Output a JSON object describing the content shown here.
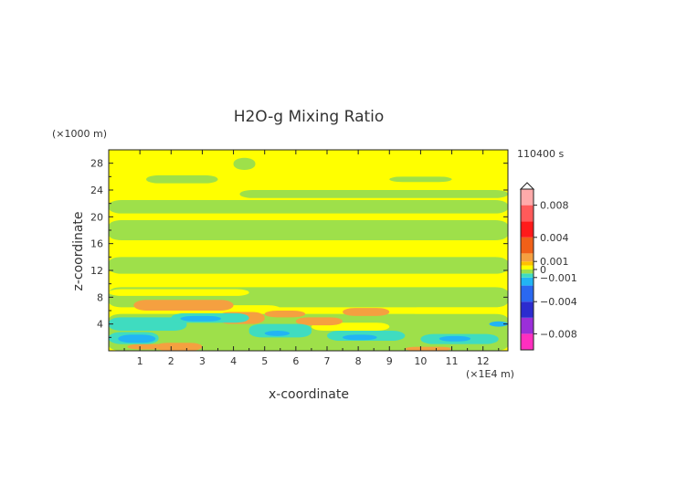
{
  "chart_data": {
    "type": "heatmap",
    "title": "H2O-g Mixing Ratio",
    "xlabel": "x-coordinate",
    "ylabel": "z-coordinate",
    "x_unit": "(×1E4 m)",
    "y_unit": "(×1000 m)",
    "time_label": "110400 s",
    "xlim": [
      0,
      12.8
    ],
    "ylim": [
      0,
      30
    ],
    "x_ticks": [
      "1",
      "2",
      "3",
      "4",
      "5",
      "6",
      "7",
      "8",
      "9",
      "10",
      "11",
      "12"
    ],
    "y_ticks": [
      "4",
      "8",
      "12",
      "16",
      "20",
      "24",
      "28"
    ],
    "colorbar": {
      "range": [
        -0.01,
        0.01
      ],
      "tick_labels": [
        {
          "value": 0.008,
          "text": "0.008"
        },
        {
          "value": 0.004,
          "text": "0.004"
        },
        {
          "value": 0.001,
          "text": "0.001"
        },
        {
          "value": 0,
          "text": "0"
        },
        {
          "value": -0.001,
          "text": "−0.001"
        },
        {
          "value": -0.004,
          "text": "−0.004"
        },
        {
          "value": -0.008,
          "text": "−0.008"
        }
      ],
      "colors": [
        {
          "min": -0.01,
          "max": -0.008,
          "color": "#ff2fbf"
        },
        {
          "min": -0.008,
          "max": -0.006,
          "color": "#9b2fd9"
        },
        {
          "min": -0.006,
          "max": -0.004,
          "color": "#2c2ccf"
        },
        {
          "min": -0.004,
          "max": -0.002,
          "color": "#2a68f0"
        },
        {
          "min": -0.002,
          "max": -0.001,
          "color": "#22b4f4"
        },
        {
          "min": -0.001,
          "max": -0.0005,
          "color": "#3fdcc0"
        },
        {
          "min": -0.0005,
          "max": 0,
          "color": "#9ee04a"
        },
        {
          "min": 0,
          "max": 0.0005,
          "color": "#ffff00"
        },
        {
          "min": 0.0005,
          "max": 0.001,
          "color": "#ffc000"
        },
        {
          "min": 0.001,
          "max": 0.002,
          "color": "#f5a040"
        },
        {
          "min": 0.002,
          "max": 0.004,
          "color": "#f06018"
        },
        {
          "min": 0.004,
          "max": 0.006,
          "color": "#ff1a1a"
        },
        {
          "min": 0.006,
          "max": 0.008,
          "color": "#ff5a5a"
        },
        {
          "min": 0.008,
          "max": 0.01,
          "color": "#ffaaaa"
        }
      ]
    },
    "regions": [
      {
        "color": "#9ee04a",
        "x0": 0,
        "x1": 12.8,
        "y0": 16.5,
        "y1": 19.5
      },
      {
        "color": "#9ee04a",
        "x0": 0,
        "x1": 12.8,
        "y0": 11.5,
        "y1": 14.0
      },
      {
        "color": "#9ee04a",
        "x0": 0,
        "x1": 12.8,
        "y0": 6.5,
        "y1": 9.5
      },
      {
        "color": "#9ee04a",
        "x0": 0,
        "x1": 12.8,
        "y0": 0,
        "y1": 5.5
      },
      {
        "color": "#9ee04a",
        "x0": 0,
        "x1": 12.8,
        "y0": 20.5,
        "y1": 22.5
      },
      {
        "color": "#9ee04a",
        "x0": 4.2,
        "x1": 12.8,
        "y0": 22.8,
        "y1": 24.0
      },
      {
        "color": "#9ee04a",
        "x0": 1.2,
        "x1": 3.5,
        "y0": 25.0,
        "y1": 26.2
      },
      {
        "color": "#9ee04a",
        "x0": 9.0,
        "x1": 11.0,
        "y0": 25.2,
        "y1": 26.0
      },
      {
        "color": "#9ee04a",
        "x0": 4.0,
        "x1": 4.7,
        "y0": 27.0,
        "y1": 28.8
      },
      {
        "color": "#ffff00",
        "x0": 1.5,
        "x1": 3.0,
        "y0": 14.3,
        "y1": 15.5
      },
      {
        "color": "#ffff00",
        "x0": 8.5,
        "x1": 12.8,
        "y0": 19.7,
        "y1": 20.3
      },
      {
        "color": "#ffff00",
        "x0": 0,
        "x1": 4.5,
        "y0": 8.2,
        "y1": 9.2
      },
      {
        "color": "#ffff00",
        "x0": 3.0,
        "x1": 5.5,
        "y0": 5.8,
        "y1": 6.8
      },
      {
        "color": "#ffff00",
        "x0": 9.5,
        "x1": 12.8,
        "y0": 5.5,
        "y1": 6.5
      },
      {
        "color": "#ffff00",
        "x0": 6.5,
        "x1": 9.0,
        "y0": 3.0,
        "y1": 4.2
      },
      {
        "color": "#f5a040",
        "x0": 0.8,
        "x1": 4.0,
        "y0": 6.0,
        "y1": 7.6
      },
      {
        "color": "#f5a040",
        "x0": 3.5,
        "x1": 5.0,
        "y0": 4.0,
        "y1": 5.8
      },
      {
        "color": "#f5a040",
        "x0": 5.0,
        "x1": 6.3,
        "y0": 5.0,
        "y1": 6.0
      },
      {
        "color": "#f5a040",
        "x0": 6.0,
        "x1": 7.5,
        "y0": 3.8,
        "y1": 5.0
      },
      {
        "color": "#f5a040",
        "x0": 7.5,
        "x1": 9.0,
        "y0": 5.2,
        "y1": 6.4
      },
      {
        "color": "#f5a040",
        "x0": 1.5,
        "x1": 3.0,
        "y0": 0,
        "y1": 1.2
      },
      {
        "color": "#f5a040",
        "x0": 0.6,
        "x1": 2.0,
        "y0": 0.2,
        "y1": 1.0
      },
      {
        "color": "#f5a040",
        "x0": 9.5,
        "x1": 11.0,
        "y0": 0,
        "y1": 0.6
      },
      {
        "color": "#3fdcc0",
        "x0": 0,
        "x1": 2.5,
        "y0": 3.0,
        "y1": 5.0
      },
      {
        "color": "#3fdcc0",
        "x0": 2.0,
        "x1": 4.5,
        "y0": 4.2,
        "y1": 5.6
      },
      {
        "color": "#3fdcc0",
        "x0": 4.5,
        "x1": 6.5,
        "y0": 2.0,
        "y1": 4.0
      },
      {
        "color": "#3fdcc0",
        "x0": 7.0,
        "x1": 9.5,
        "y0": 1.5,
        "y1": 3.0
      },
      {
        "color": "#3fdcc0",
        "x0": 10.0,
        "x1": 12.5,
        "y0": 1.0,
        "y1": 2.5
      },
      {
        "color": "#3fdcc0",
        "x0": 0,
        "x1": 1.6,
        "y0": 1.0,
        "y1": 2.8
      },
      {
        "color": "#22b4f4",
        "x0": 0.3,
        "x1": 1.5,
        "y0": 1.2,
        "y1": 2.4
      },
      {
        "color": "#22b4f4",
        "x0": 2.3,
        "x1": 3.6,
        "y0": 4.4,
        "y1": 5.2
      },
      {
        "color": "#22b4f4",
        "x0": 5.0,
        "x1": 5.8,
        "y0": 2.2,
        "y1": 3.0
      },
      {
        "color": "#22b4f4",
        "x0": 7.5,
        "x1": 8.6,
        "y0": 1.6,
        "y1": 2.4
      },
      {
        "color": "#22b4f4",
        "x0": 10.6,
        "x1": 11.6,
        "y0": 1.4,
        "y1": 2.2
      },
      {
        "color": "#22b4f4",
        "x0": 12.2,
        "x1": 12.8,
        "y0": 3.6,
        "y1": 4.4
      }
    ]
  }
}
